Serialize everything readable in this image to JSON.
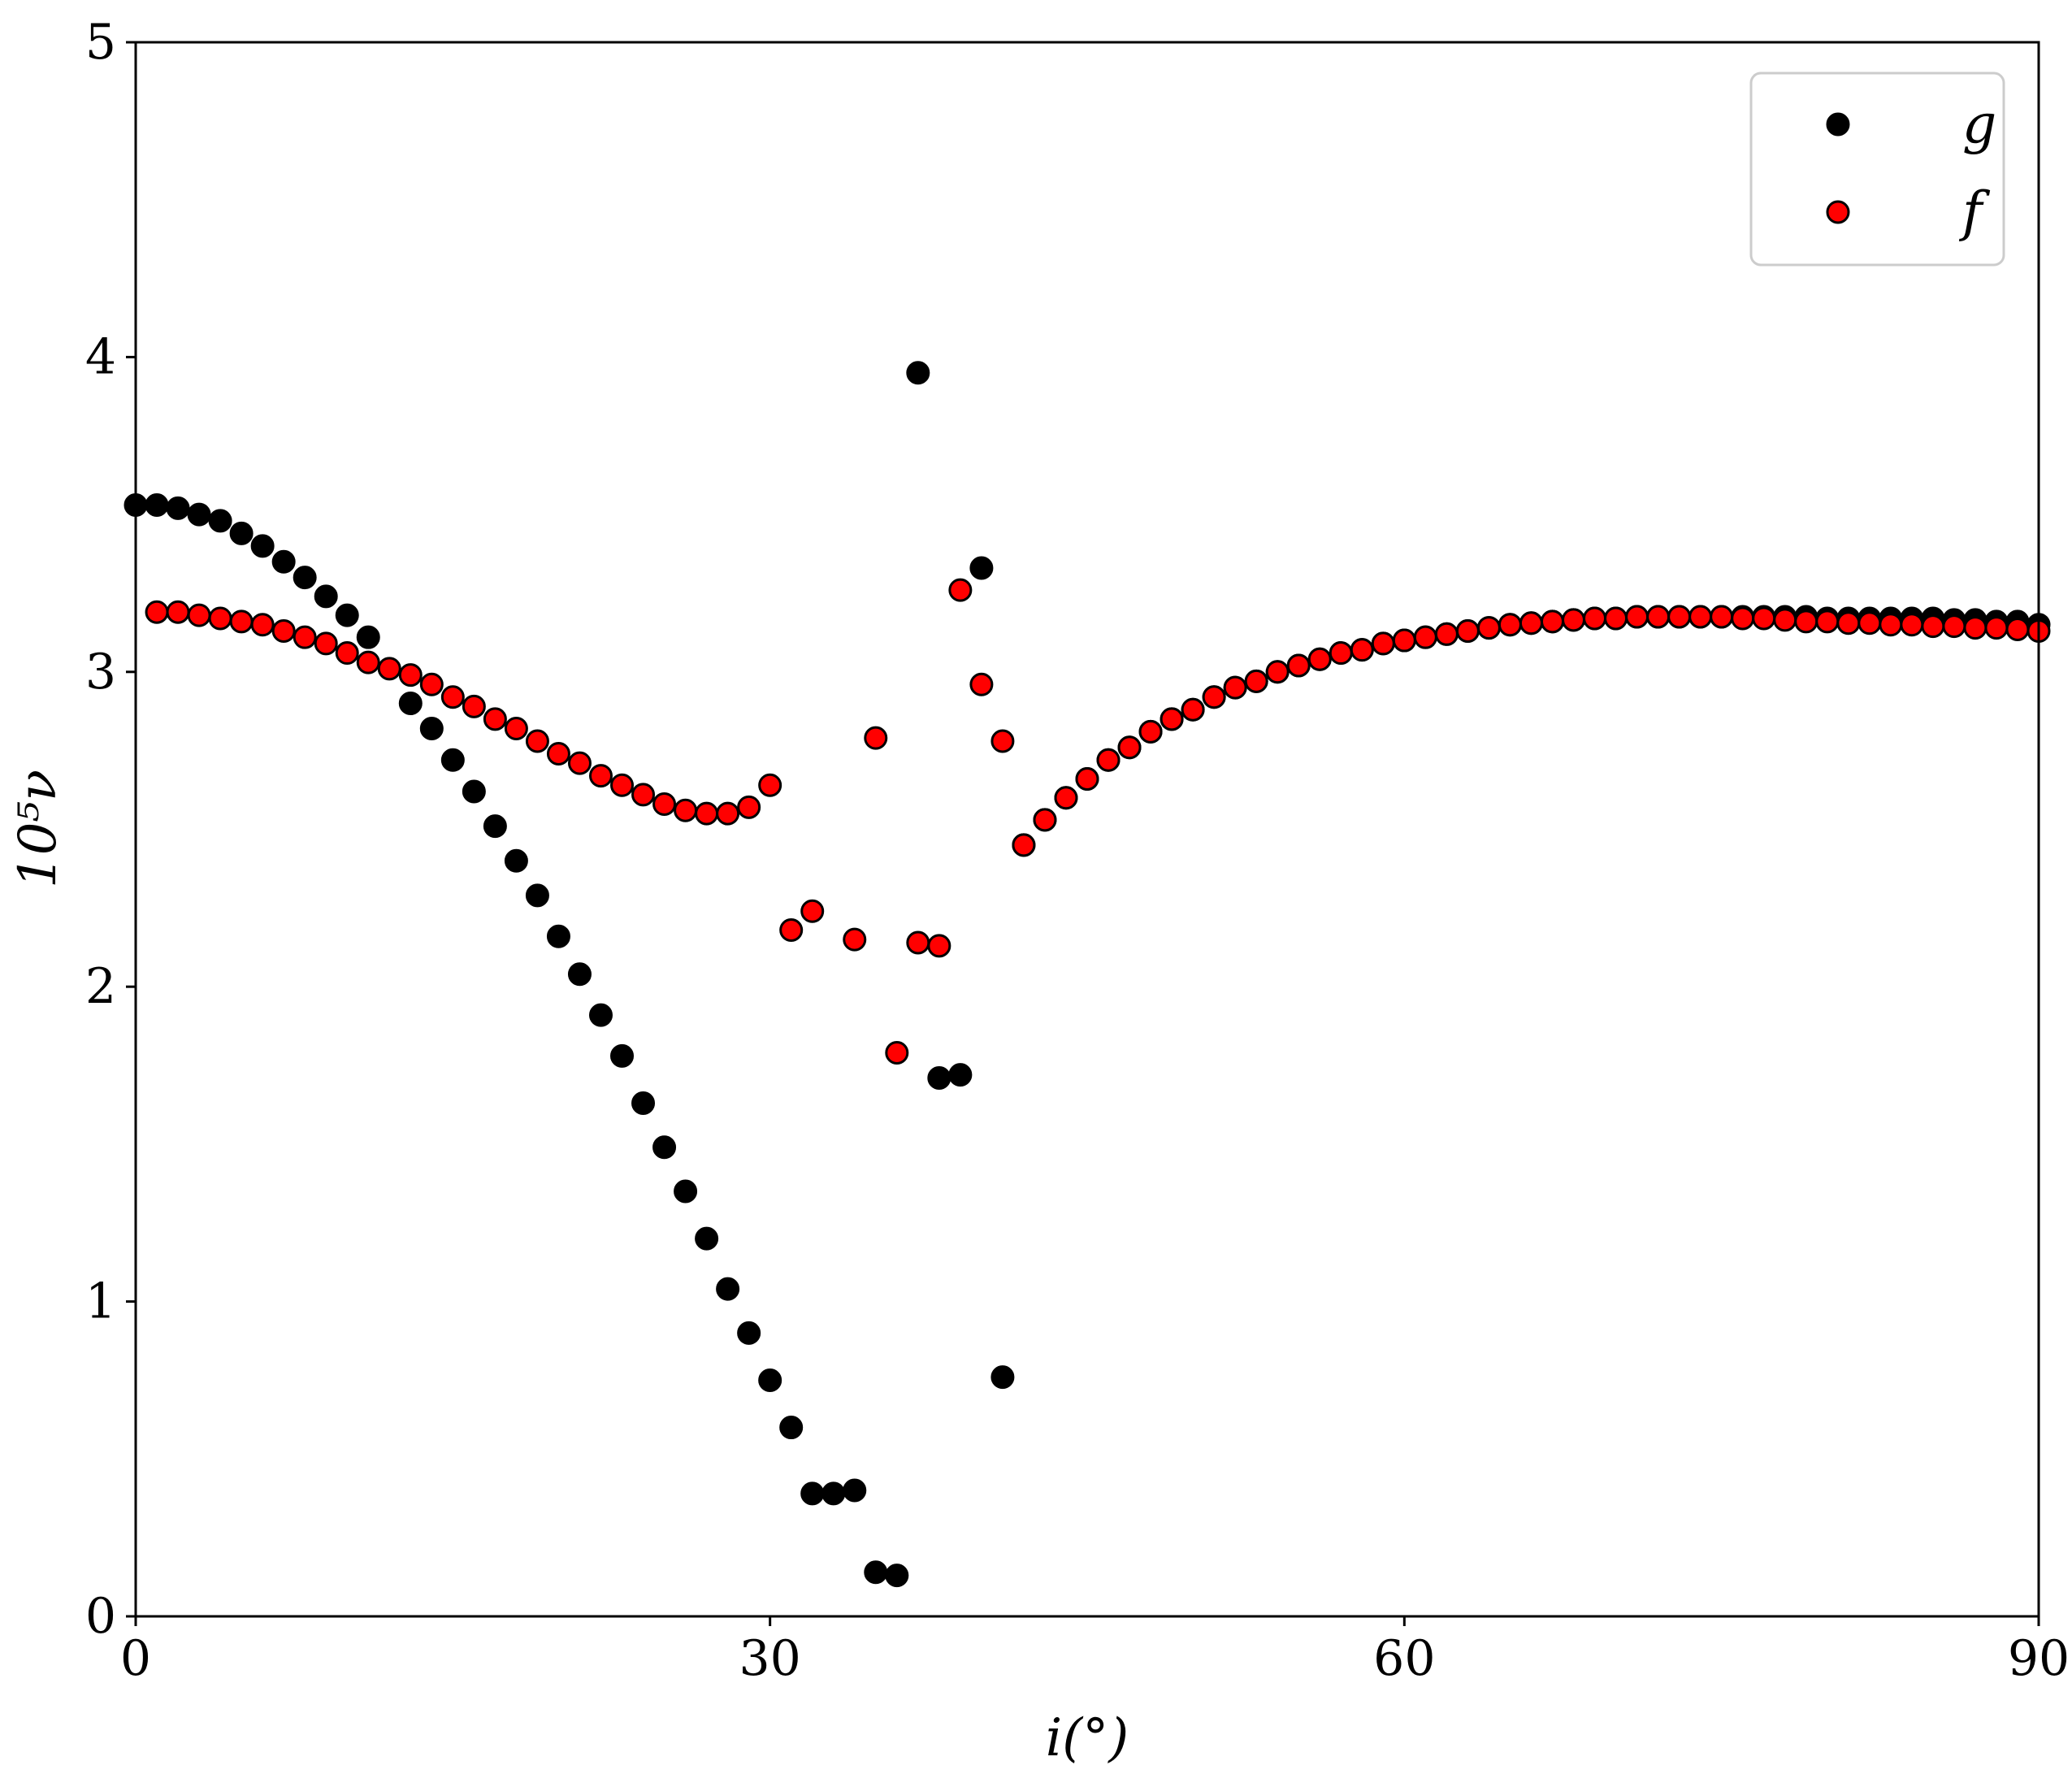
{
  "chart_data": {
    "type": "scatter",
    "title": "",
    "xlabel": "i(°)",
    "ylabel": "10⁵ν",
    "xlim": [
      0,
      90
    ],
    "ylim": [
      0,
      5
    ],
    "xticks": [
      "0",
      "30",
      "60",
      "90"
    ],
    "yticks": [
      "0",
      "1",
      "2",
      "3",
      "4",
      "5"
    ],
    "grid": false,
    "legend_position": "top-right",
    "series": [
      {
        "name": "g",
        "color": "#000000",
        "points": [
          [
            0,
            3.53
          ],
          [
            1,
            3.53
          ],
          [
            2,
            3.52
          ],
          [
            3,
            3.5
          ],
          [
            4,
            3.48
          ],
          [
            5,
            3.44
          ],
          [
            6,
            3.4
          ],
          [
            7,
            3.35
          ],
          [
            8,
            3.3
          ],
          [
            9,
            3.24
          ],
          [
            10,
            3.18
          ],
          [
            11,
            3.11
          ],
          [
            13,
            2.9
          ],
          [
            14,
            2.82
          ],
          [
            15,
            2.72
          ],
          [
            16,
            2.62
          ],
          [
            17,
            2.51
          ],
          [
            18,
            2.4
          ],
          [
            19,
            2.29
          ],
          [
            20,
            2.16
          ],
          [
            21,
            2.04
          ],
          [
            22,
            1.91
          ],
          [
            23,
            1.78
          ],
          [
            24,
            1.63
          ],
          [
            25,
            1.49
          ],
          [
            26,
            1.35
          ],
          [
            27,
            1.2
          ],
          [
            28,
            1.04
          ],
          [
            29,
            0.9
          ],
          [
            30,
            0.75
          ],
          [
            31,
            0.6
          ],
          [
            32,
            0.39
          ],
          [
            33,
            0.39
          ],
          [
            34,
            0.4
          ],
          [
            35,
            0.14
          ],
          [
            36,
            0.13
          ],
          [
            37,
            3.95
          ],
          [
            38,
            1.71
          ],
          [
            39,
            1.72
          ],
          [
            40,
            3.33
          ],
          [
            41,
            0.76
          ],
          [
            42,
            2.45
          ],
          [
            43,
            2.53
          ],
          [
            44,
            2.6
          ],
          [
            45,
            2.66
          ],
          [
            46,
            2.72
          ],
          [
            47,
            2.76
          ],
          [
            48,
            2.81
          ],
          [
            49,
            2.85
          ],
          [
            50,
            2.88
          ],
          [
            51,
            2.92
          ],
          [
            52,
            2.95
          ],
          [
            53,
            2.97
          ],
          [
            54,
            3.0
          ],
          [
            55,
            3.02
          ],
          [
            56,
            3.04
          ],
          [
            57,
            3.06
          ],
          [
            58,
            3.07
          ],
          [
            59,
            3.09
          ],
          [
            60,
            3.1
          ],
          [
            61,
            3.11
          ],
          [
            62,
            3.12
          ],
          [
            63,
            3.13
          ],
          [
            64,
            3.14
          ],
          [
            65,
            3.15
          ],
          [
            66,
            3.155
          ],
          [
            67,
            3.16
          ],
          [
            68,
            3.165
          ],
          [
            69,
            3.17
          ],
          [
            70,
            3.17
          ],
          [
            71,
            3.175
          ],
          [
            72,
            3.175
          ],
          [
            73,
            3.175
          ],
          [
            74,
            3.175
          ],
          [
            75,
            3.175
          ],
          [
            76,
            3.175
          ],
          [
            77,
            3.175
          ],
          [
            78,
            3.175
          ],
          [
            79,
            3.175
          ],
          [
            80,
            3.17
          ],
          [
            81,
            3.17
          ],
          [
            82,
            3.17
          ],
          [
            83,
            3.17
          ],
          [
            84,
            3.17
          ],
          [
            85,
            3.17
          ],
          [
            86,
            3.165
          ],
          [
            87,
            3.165
          ],
          [
            88,
            3.16
          ],
          [
            89,
            3.16
          ],
          [
            90,
            3.15
          ]
        ]
      },
      {
        "name": "f",
        "color": "#ff0000",
        "points": [
          [
            1,
            3.19
          ],
          [
            2,
            3.19
          ],
          [
            3,
            3.18
          ],
          [
            4,
            3.17
          ],
          [
            5,
            3.16
          ],
          [
            6,
            3.15
          ],
          [
            7,
            3.13
          ],
          [
            8,
            3.11
          ],
          [
            9,
            3.09
          ],
          [
            10,
            3.06
          ],
          [
            11,
            3.03
          ],
          [
            12,
            3.01
          ],
          [
            13,
            2.99
          ],
          [
            14,
            2.96
          ],
          [
            15,
            2.92
          ],
          [
            16,
            2.89
          ],
          [
            17,
            2.85
          ],
          [
            18,
            2.82
          ],
          [
            19,
            2.78
          ],
          [
            20,
            2.74
          ],
          [
            21,
            2.71
          ],
          [
            22,
            2.67
          ],
          [
            23,
            2.64
          ],
          [
            24,
            2.61
          ],
          [
            25,
            2.58
          ],
          [
            26,
            2.56
          ],
          [
            27,
            2.55
          ],
          [
            28,
            2.55
          ],
          [
            29,
            2.57
          ],
          [
            30,
            2.64
          ],
          [
            31,
            2.18
          ],
          [
            32,
            2.24
          ],
          [
            34,
            2.15
          ],
          [
            35,
            2.79
          ],
          [
            36,
            1.79
          ],
          [
            37,
            2.14
          ],
          [
            38,
            2.13
          ],
          [
            39,
            3.26
          ],
          [
            40,
            2.96
          ],
          [
            41,
            2.78
          ],
          [
            42,
            2.45
          ],
          [
            43,
            2.53
          ],
          [
            44,
            2.6
          ],
          [
            45,
            2.66
          ],
          [
            46,
            2.72
          ],
          [
            47,
            2.76
          ],
          [
            48,
            2.81
          ],
          [
            49,
            2.85
          ],
          [
            50,
            2.88
          ],
          [
            51,
            2.92
          ],
          [
            52,
            2.95
          ],
          [
            53,
            2.97
          ],
          [
            54,
            3.0
          ],
          [
            55,
            3.02
          ],
          [
            56,
            3.04
          ],
          [
            57,
            3.06
          ],
          [
            58,
            3.07
          ],
          [
            59,
            3.09
          ],
          [
            60,
            3.1
          ],
          [
            61,
            3.11
          ],
          [
            62,
            3.12
          ],
          [
            63,
            3.13
          ],
          [
            64,
            3.14
          ],
          [
            65,
            3.15
          ],
          [
            66,
            3.155
          ],
          [
            67,
            3.16
          ],
          [
            68,
            3.165
          ],
          [
            69,
            3.17
          ],
          [
            70,
            3.17
          ],
          [
            71,
            3.175
          ],
          [
            72,
            3.175
          ],
          [
            73,
            3.175
          ],
          [
            74,
            3.175
          ],
          [
            75,
            3.175
          ],
          [
            76,
            3.17
          ],
          [
            77,
            3.17
          ],
          [
            78,
            3.165
          ],
          [
            79,
            3.16
          ],
          [
            80,
            3.16
          ],
          [
            81,
            3.155
          ],
          [
            82,
            3.155
          ],
          [
            83,
            3.15
          ],
          [
            84,
            3.15
          ],
          [
            85,
            3.145
          ],
          [
            86,
            3.145
          ],
          [
            87,
            3.14
          ],
          [
            88,
            3.14
          ],
          [
            89,
            3.135
          ],
          [
            90,
            3.13
          ]
        ]
      }
    ]
  }
}
